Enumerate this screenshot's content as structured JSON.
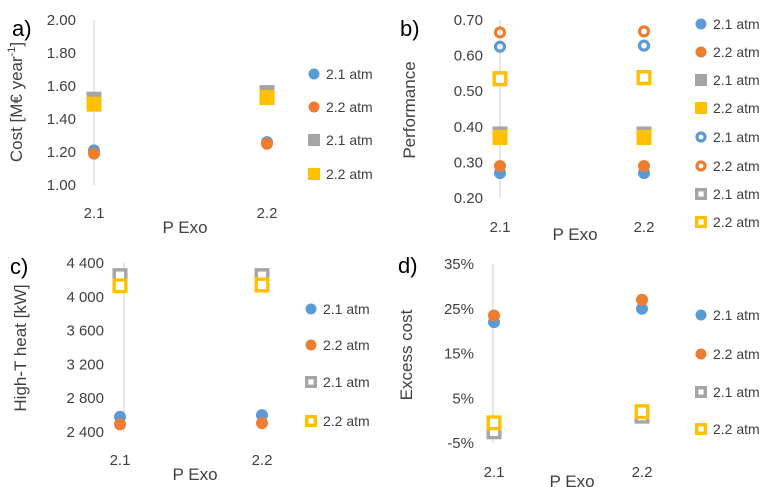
{
  "chart_data": [
    {
      "panel": "a)",
      "type": "scatter",
      "xlabel": "P Exo",
      "ylabel": "Cost [M€ year",
      "ylabel_sup": "-1",
      "x_ticks": [
        "2.1",
        "2.2"
      ],
      "y_ticks": [
        "2.00",
        "1.80",
        "1.60",
        "1.40",
        "1.20",
        "1.00"
      ],
      "ylim": [
        1.0,
        2.0
      ],
      "series": [
        {
          "name": "2.1 atm",
          "marker": "circle",
          "color": "#5B9BD5",
          "x": [
            2.1,
            2.2
          ],
          "y": [
            1.21,
            1.26
          ]
        },
        {
          "name": "2.2 atm",
          "marker": "circle",
          "color": "#ED7D31",
          "x": [
            2.1,
            2.2
          ],
          "y": [
            1.19,
            1.25
          ]
        },
        {
          "name": "2.1 atm",
          "marker": "square",
          "color": "#A5A5A5",
          "x": [
            2.1,
            2.2
          ],
          "y": [
            1.52,
            1.56
          ]
        },
        {
          "name": "2.2 atm",
          "marker": "square",
          "color": "#FFC000",
          "x": [
            2.1,
            2.2
          ],
          "y": [
            1.49,
            1.53
          ]
        }
      ]
    },
    {
      "panel": "b)",
      "type": "scatter",
      "xlabel": "P Exo",
      "ylabel": "Performance",
      "x_ticks": [
        "2.1",
        "2.2"
      ],
      "y_ticks": [
        "0.70",
        "0.60",
        "0.50",
        "0.40",
        "0.30",
        "0.20"
      ],
      "ylim": [
        0.2,
        0.7
      ],
      "series": [
        {
          "name": "2.1 atm",
          "marker": "circle",
          "color": "#5B9BD5",
          "x": [
            2.1,
            2.2
          ],
          "y": [
            0.27,
            0.27
          ]
        },
        {
          "name": "2.2 atm",
          "marker": "circle",
          "color": "#ED7D31",
          "x": [
            2.1,
            2.2
          ],
          "y": [
            0.29,
            0.29
          ]
        },
        {
          "name": "2.1 atm",
          "marker": "square",
          "color": "#A5A5A5",
          "x": [
            2.1,
            2.2
          ],
          "y": [
            0.38,
            0.38
          ]
        },
        {
          "name": "2.2 atm",
          "marker": "square",
          "color": "#FFC000",
          "x": [
            2.1,
            2.2
          ],
          "y": [
            0.37,
            0.37
          ]
        },
        {
          "name": "2.1 atm",
          "marker": "ring",
          "color": "#5B9BD5",
          "x": [
            2.1,
            2.2
          ],
          "y": [
            0.625,
            0.628
          ]
        },
        {
          "name": "2.2 atm",
          "marker": "ring",
          "color": "#ED7D31",
          "x": [
            2.1,
            2.2
          ],
          "y": [
            0.665,
            0.668
          ]
        },
        {
          "name": "2.1 atm",
          "marker": "hollow-square",
          "color": "#A5A5A5",
          "x": [
            2.1,
            2.2
          ],
          "y": [
            0.535,
            0.538
          ]
        },
        {
          "name": "2.2 atm",
          "marker": "hollow-square",
          "color": "#FFC000",
          "x": [
            2.1,
            2.2
          ],
          "y": [
            0.535,
            0.538
          ]
        }
      ]
    },
    {
      "panel": "c)",
      "type": "scatter",
      "xlabel": "P Exo",
      "ylabel": "High-T heat [kW]",
      "x_ticks": [
        "2.1",
        "2.2"
      ],
      "y_ticks": [
        "4 400",
        "4 000",
        "3 600",
        "3 200",
        "2 800",
        "2 400"
      ],
      "ylim": [
        2400,
        4400
      ],
      "series": [
        {
          "name": "2.1 atm",
          "marker": "circle",
          "color": "#5B9BD5",
          "x": [
            2.1,
            2.2
          ],
          "y": [
            2580,
            2600
          ]
        },
        {
          "name": "2.2 atm",
          "marker": "circle",
          "color": "#ED7D31",
          "x": [
            2.1,
            2.2
          ],
          "y": [
            2490,
            2505
          ]
        },
        {
          "name": "2.1 atm",
          "marker": "hollow-square",
          "color": "#A5A5A5",
          "x": [
            2.1,
            2.2
          ],
          "y": [
            4250,
            4250
          ]
        },
        {
          "name": "2.2 atm",
          "marker": "hollow-square",
          "color": "#FFC000",
          "x": [
            2.1,
            2.2
          ],
          "y": [
            4130,
            4140
          ]
        }
      ]
    },
    {
      "panel": "d)",
      "type": "scatter",
      "xlabel": "P Exo",
      "ylabel": "Excess cost",
      "x_ticks": [
        "2.1",
        "2.2"
      ],
      "y_ticks": [
        "35%",
        "25%",
        "15%",
        "5%",
        "-5%"
      ],
      "ylim": [
        -5,
        35
      ],
      "series": [
        {
          "name": "2.1 atm",
          "marker": "circle",
          "color": "#5B9BD5",
          "x": [
            2.1,
            2.2
          ],
          "y": [
            22,
            25
          ]
        },
        {
          "name": "2.2 atm",
          "marker": "circle",
          "color": "#ED7D31",
          "x": [
            2.1,
            2.2
          ],
          "y": [
            23.5,
            27
          ]
        },
        {
          "name": "2.1 atm",
          "marker": "hollow-square",
          "color": "#A5A5A5",
          "x": [
            2.1,
            2.2
          ],
          "y": [
            -2.5,
            1
          ]
        },
        {
          "name": "2.2 atm",
          "marker": "hollow-square",
          "color": "#FFC000",
          "x": [
            2.1,
            2.2
          ],
          "y": [
            -0.5,
            2
          ]
        }
      ]
    }
  ]
}
